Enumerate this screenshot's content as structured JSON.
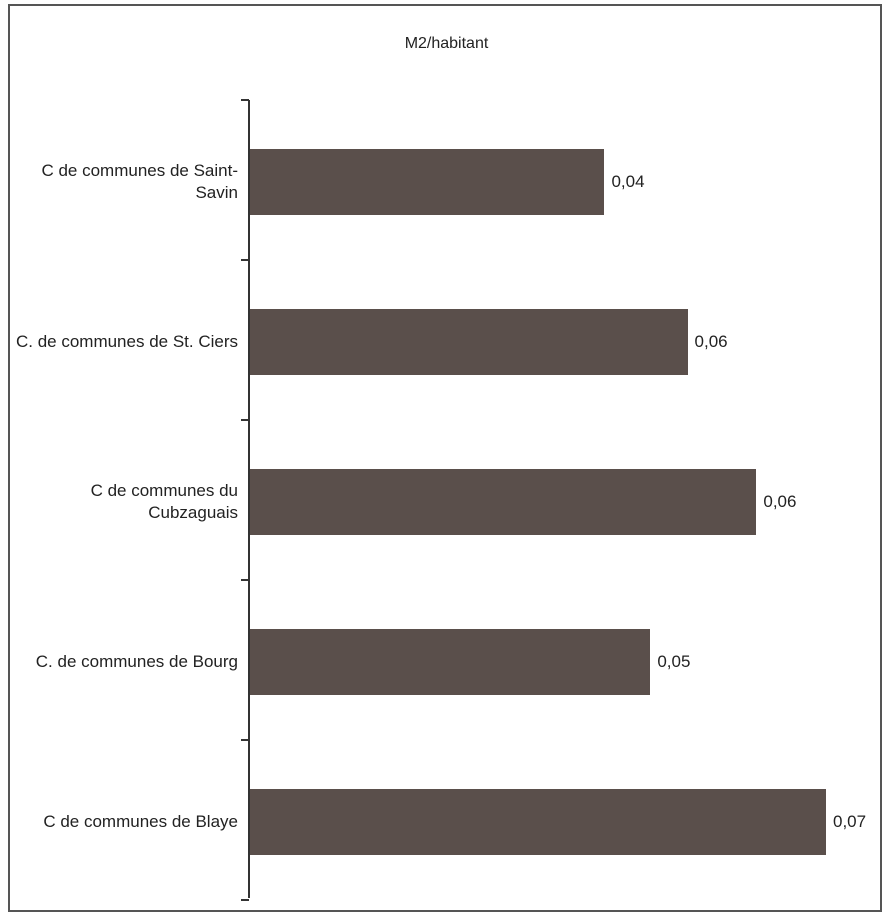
{
  "chart_data": {
    "type": "hbar",
    "title": "M2/habitant",
    "categories": [
      "C de communes de Saint-Savin",
      "C. de communes de St. Ciers",
      "C de communes du Cubzaguais",
      "C. de communes de Bourg",
      "C de communes de Blaye"
    ],
    "values": [
      0.0448,
      0.0553,
      0.064,
      0.0506,
      0.0728
    ],
    "value_labels": [
      "0,04",
      "0,06",
      "0,06",
      "0,05",
      "0,07"
    ],
    "color": "#5a4f4b"
  }
}
